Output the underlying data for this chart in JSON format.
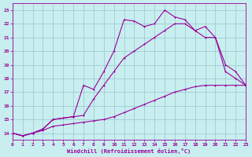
{
  "xlabel": "Windchill (Refroidissement éolien,°C)",
  "background_color": "#c8eef0",
  "grid_color": "#a0ccd0",
  "line_color": "#990099",
  "xlim": [
    0,
    23
  ],
  "ylim": [
    13.5,
    23.5
  ],
  "xticks": [
    0,
    1,
    2,
    3,
    4,
    5,
    6,
    7,
    8,
    9,
    10,
    11,
    12,
    13,
    14,
    15,
    16,
    17,
    18,
    19,
    20,
    21,
    22,
    23
  ],
  "yticks": [
    14,
    15,
    16,
    17,
    18,
    19,
    20,
    21,
    22,
    23
  ],
  "line1_x": [
    0,
    1,
    2,
    3,
    4,
    5,
    6,
    7,
    8,
    9,
    10,
    11,
    12,
    13,
    14,
    15,
    16,
    17,
    18,
    19,
    20,
    21,
    22,
    23
  ],
  "line1_y": [
    14.0,
    13.8,
    14.0,
    14.2,
    14.5,
    14.6,
    14.7,
    14.8,
    14.9,
    15.0,
    15.2,
    15.5,
    15.8,
    16.1,
    16.4,
    16.7,
    17.0,
    17.2,
    17.4,
    17.5,
    17.5,
    17.5,
    17.5,
    17.5
  ],
  "line2_x": [
    0,
    1,
    2,
    3,
    4,
    5,
    6,
    7,
    8,
    9,
    10,
    11,
    12,
    13,
    14,
    15,
    16,
    17,
    18,
    19,
    20,
    21,
    22,
    23
  ],
  "line2_y": [
    14.0,
    13.8,
    14.0,
    14.3,
    15.0,
    15.1,
    15.2,
    15.3,
    16.5,
    17.5,
    18.5,
    19.5,
    20.0,
    20.5,
    21.0,
    21.5,
    22.0,
    22.0,
    21.5,
    21.0,
    21.0,
    19.0,
    18.5,
    17.5
  ],
  "line3_x": [
    0,
    1,
    2,
    3,
    4,
    5,
    6,
    7,
    8,
    9,
    10,
    11,
    12,
    13,
    14,
    15,
    16,
    17,
    18,
    19,
    20,
    21,
    22,
    23
  ],
  "line3_y": [
    14.0,
    13.8,
    14.0,
    14.3,
    15.0,
    15.1,
    15.2,
    17.5,
    17.2,
    18.5,
    20.0,
    22.3,
    22.2,
    21.8,
    22.0,
    23.0,
    22.5,
    22.3,
    21.5,
    21.8,
    21.0,
    18.5,
    18.0,
    17.5
  ]
}
